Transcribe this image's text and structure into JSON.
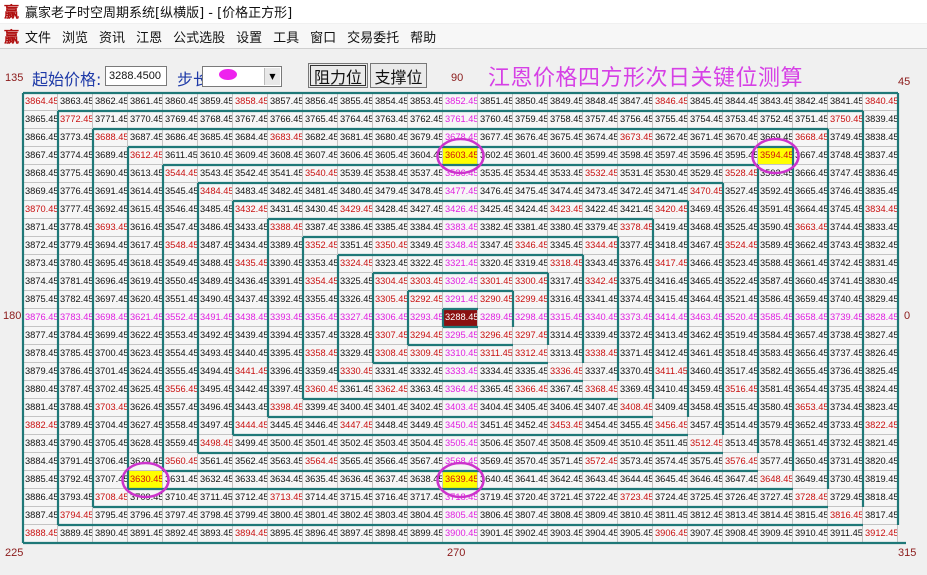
{
  "window": {
    "logo": "赢",
    "title": "赢家老子时空周期系统[纵横版] - [价格正方形]"
  },
  "menu": [
    "文件",
    "浏览",
    "资讯",
    "江恩",
    "公式选股",
    "设置",
    "工具",
    "窗口",
    "交易委托",
    "帮助"
  ],
  "toolbar": {
    "start_label": "起始价格:",
    "start_value": "3288.4500",
    "step_label": "步长:",
    "resistance_button": "阻力位",
    "support_button": "支撑位"
  },
  "heading": "江恩价格四方形次日关键位测算",
  "angles": {
    "top_left": "135",
    "top": "90",
    "top_right": "45",
    "left": "180",
    "right": "0",
    "bottom_left": "225",
    "bottom": "270",
    "bottom_right": "315"
  },
  "colors": {
    "quarter_text": "#c81010",
    "cross_text": "#e020e0",
    "highlight_bg": "#ffff00",
    "center_bg": "#8a1010",
    "wall": "#1f7878",
    "circle": "#cc33cc"
  },
  "grid": {
    "center_value": 3288.45,
    "highlights": [
      3603.45,
      3594.45,
      3630.45,
      3639.45
    ],
    "rows": [
      [
        3864.45,
        3863.45,
        3862.45,
        3861.45,
        3860.45,
        3859.45,
        3858.45,
        3857.45,
        3856.45,
        3855.45,
        3854.45,
        3853.45,
        3852.45,
        3851.45,
        3850.45,
        3849.45,
        3848.45,
        3847.45,
        3846.45,
        3845.45,
        3844.45,
        3843.45,
        3842.45,
        3841.45,
        3840.45
      ],
      [
        3865.45,
        3772.45,
        3771.45,
        3770.45,
        3769.45,
        3768.45,
        3767.45,
        3766.45,
        3765.45,
        3764.45,
        3763.45,
        3762.45,
        3761.45,
        3760.45,
        3759.45,
        3758.45,
        3757.45,
        3756.45,
        3755.45,
        3754.45,
        3753.45,
        3752.45,
        3751.45,
        3750.45,
        3839.45
      ],
      [
        3866.45,
        3773.45,
        3688.45,
        3687.45,
        3686.45,
        3685.45,
        3684.45,
        3683.45,
        3682.45,
        3681.45,
        3680.45,
        3679.45,
        3678.45,
        3677.45,
        3676.45,
        3675.45,
        3674.45,
        3673.45,
        3672.45,
        3671.45,
        3670.45,
        3669.45,
        3668.45,
        3749.45,
        3838.45
      ],
      [
        3867.45,
        3774.45,
        3689.45,
        3612.45,
        3611.45,
        3610.45,
        3609.45,
        3608.45,
        3607.45,
        3606.45,
        3605.45,
        3604.45,
        3603.45,
        3602.45,
        3601.45,
        3600.45,
        3599.45,
        3598.45,
        3597.45,
        3596.45,
        3595.45,
        3594.45,
        3667.45,
        3748.45,
        3837.45
      ],
      [
        3868.45,
        3775.45,
        3690.45,
        3613.45,
        3544.45,
        3543.45,
        3542.45,
        3541.45,
        3540.45,
        3539.45,
        3538.45,
        3537.45,
        3536.45,
        3535.45,
        3534.45,
        3533.45,
        3532.45,
        3531.45,
        3530.45,
        3529.45,
        3528.45,
        3593.45,
        3666.45,
        3747.45,
        3836.45
      ],
      [
        3869.45,
        3776.45,
        3691.45,
        3614.45,
        3545.45,
        3484.45,
        3483.45,
        3482.45,
        3481.45,
        3480.45,
        3479.45,
        3478.45,
        3477.45,
        3476.45,
        3475.45,
        3474.45,
        3473.45,
        3472.45,
        3471.45,
        3470.45,
        3527.45,
        3592.45,
        3665.45,
        3746.45,
        3835.45
      ],
      [
        3870.45,
        3777.45,
        3692.45,
        3615.45,
        3546.45,
        3485.45,
        3432.45,
        3431.45,
        3430.45,
        3429.45,
        3428.45,
        3427.45,
        3426.45,
        3425.45,
        3424.45,
        3423.45,
        3422.45,
        3421.45,
        3420.45,
        3469.45,
        3526.45,
        3591.45,
        3664.45,
        3745.45,
        3834.45
      ],
      [
        3871.45,
        3778.45,
        3693.45,
        3616.45,
        3547.45,
        3486.45,
        3433.45,
        3388.45,
        3387.45,
        3386.45,
        3385.45,
        3384.45,
        3383.45,
        3382.45,
        3381.45,
        3380.45,
        3379.45,
        3378.45,
        3419.45,
        3468.45,
        3525.45,
        3590.45,
        3663.45,
        3744.45,
        3833.45
      ],
      [
        3872.45,
        3779.45,
        3694.45,
        3617.45,
        3548.45,
        3487.45,
        3434.45,
        3389.45,
        3352.45,
        3351.45,
        3350.45,
        3349.45,
        3348.45,
        3347.45,
        3346.45,
        3345.45,
        3344.45,
        3377.45,
        3418.45,
        3467.45,
        3524.45,
        3589.45,
        3662.45,
        3743.45,
        3832.45
      ],
      [
        3873.45,
        3780.45,
        3695.45,
        3618.45,
        3549.45,
        3488.45,
        3435.45,
        3390.45,
        3353.45,
        3324.45,
        3323.45,
        3322.45,
        3321.45,
        3320.45,
        3319.45,
        3318.45,
        3343.45,
        3376.45,
        3417.45,
        3466.45,
        3523.45,
        3588.45,
        3661.45,
        3742.45,
        3831.45
      ],
      [
        3874.45,
        3781.45,
        3696.45,
        3619.45,
        3550.45,
        3489.45,
        3436.45,
        3391.45,
        3354.45,
        3325.45,
        3304.45,
        3303.45,
        3302.45,
        3301.45,
        3300.45,
        3317.45,
        3342.45,
        3375.45,
        3416.45,
        3465.45,
        3522.45,
        3587.45,
        3660.45,
        3741.45,
        3830.45
      ],
      [
        3875.45,
        3782.45,
        3697.45,
        3620.45,
        3551.45,
        3490.45,
        3437.45,
        3392.45,
        3355.45,
        3326.45,
        3305.45,
        3292.45,
        3291.45,
        3290.45,
        3299.45,
        3316.45,
        3341.45,
        3374.45,
        3415.45,
        3464.45,
        3521.45,
        3586.45,
        3659.45,
        3740.45,
        3829.45
      ],
      [
        3876.45,
        3783.45,
        3698.45,
        3621.45,
        3552.45,
        3491.45,
        3438.45,
        3393.45,
        3356.45,
        3327.45,
        3306.45,
        3293.45,
        3288.45,
        3289.45,
        3298.45,
        3315.45,
        3340.45,
        3373.45,
        3414.45,
        3463.45,
        3520.45,
        3585.45,
        3658.45,
        3739.45,
        3828.45
      ],
      [
        3877.45,
        3784.45,
        3699.45,
        3622.45,
        3553.45,
        3492.45,
        3439.45,
        3394.45,
        3357.45,
        3328.45,
        3307.45,
        3294.45,
        3295.45,
        3296.45,
        3297.45,
        3314.45,
        3339.45,
        3372.45,
        3413.45,
        3462.45,
        3519.45,
        3584.45,
        3657.45,
        3738.45,
        3827.45
      ],
      [
        3878.45,
        3785.45,
        3700.45,
        3623.45,
        3554.45,
        3493.45,
        3440.45,
        3395.45,
        3358.45,
        3329.45,
        3308.45,
        3309.45,
        3310.45,
        3311.45,
        3312.45,
        3313.45,
        3338.45,
        3371.45,
        3412.45,
        3461.45,
        3518.45,
        3583.45,
        3656.45,
        3737.45,
        3826.45
      ],
      [
        3879.45,
        3786.45,
        3701.45,
        3624.45,
        3555.45,
        3494.45,
        3441.45,
        3396.45,
        3359.45,
        3330.45,
        3331.45,
        3332.45,
        3333.45,
        3334.45,
        3335.45,
        3336.45,
        3337.45,
        3370.45,
        3411.45,
        3460.45,
        3517.45,
        3582.45,
        3655.45,
        3736.45,
        3825.45
      ],
      [
        3880.45,
        3787.45,
        3702.45,
        3625.45,
        3556.45,
        3495.45,
        3442.45,
        3397.45,
        3360.45,
        3361.45,
        3362.45,
        3363.45,
        3364.45,
        3365.45,
        3366.45,
        3367.45,
        3368.45,
        3369.45,
        3410.45,
        3459.45,
        3516.45,
        3581.45,
        3654.45,
        3735.45,
        3824.45
      ],
      [
        3881.45,
        3788.45,
        3703.45,
        3626.45,
        3557.45,
        3496.45,
        3443.45,
        3398.45,
        3399.45,
        3400.45,
        3401.45,
        3402.45,
        3403.45,
        3404.45,
        3405.45,
        3406.45,
        3407.45,
        3408.45,
        3409.45,
        3458.45,
        3515.45,
        3580.45,
        3653.45,
        3734.45,
        3823.45
      ],
      [
        3882.45,
        3789.45,
        3704.45,
        3627.45,
        3558.45,
        3497.45,
        3444.45,
        3445.45,
        3446.45,
        3447.45,
        3448.45,
        3449.45,
        3450.45,
        3451.45,
        3452.45,
        3453.45,
        3454.45,
        3455.45,
        3456.45,
        3457.45,
        3514.45,
        3579.45,
        3652.45,
        3733.45,
        3822.45
      ],
      [
        3883.45,
        3790.45,
        3705.45,
        3628.45,
        3559.45,
        3498.45,
        3499.45,
        3500.45,
        3501.45,
        3502.45,
        3503.45,
        3504.45,
        3505.45,
        3506.45,
        3507.45,
        3508.45,
        3509.45,
        3510.45,
        3511.45,
        3512.45,
        3513.45,
        3578.45,
        3651.45,
        3732.45,
        3821.45
      ],
      [
        3884.45,
        3791.45,
        3706.45,
        3629.45,
        3560.45,
        3561.45,
        3562.45,
        3563.45,
        3564.45,
        3565.45,
        3566.45,
        3567.45,
        3568.45,
        3569.45,
        3570.45,
        3571.45,
        3572.45,
        3573.45,
        3574.45,
        3575.45,
        3576.45,
        3577.45,
        3650.45,
        3731.45,
        3820.45
      ],
      [
        3885.45,
        3792.45,
        3707.45,
        3630.45,
        3631.45,
        3632.45,
        3633.45,
        3634.45,
        3635.45,
        3636.45,
        3637.45,
        3638.45,
        3639.45,
        3640.45,
        3641.45,
        3642.45,
        3643.45,
        3644.45,
        3645.45,
        3646.45,
        3647.45,
        3648.45,
        3649.45,
        3730.45,
        3819.45
      ],
      [
        3886.45,
        3793.45,
        3708.45,
        3709.45,
        3710.45,
        3711.45,
        3712.45,
        3713.45,
        3714.45,
        3715.45,
        3716.45,
        3717.45,
        3718.45,
        3719.45,
        3720.45,
        3721.45,
        3722.45,
        3723.45,
        3724.45,
        3725.45,
        3726.45,
        3727.45,
        3728.45,
        3729.45,
        3818.45
      ],
      [
        3887.45,
        3794.45,
        3795.45,
        3796.45,
        3797.45,
        3798.45,
        3799.45,
        3800.45,
        3801.45,
        3802.45,
        3803.45,
        3804.45,
        3805.45,
        3806.45,
        3807.45,
        3808.45,
        3809.45,
        3810.45,
        3811.45,
        3812.45,
        3813.45,
        3814.45,
        3815.45,
        3816.45,
        3817.45
      ],
      [
        3888.45,
        3889.45,
        3890.45,
        3891.45,
        3892.45,
        3893.45,
        3894.45,
        3895.45,
        3896.45,
        3897.45,
        3898.45,
        3899.45,
        3900.45,
        3901.45,
        3902.45,
        3903.45,
        3904.45,
        3905.45,
        3906.45,
        3907.45,
        3908.45,
        3909.45,
        3910.45,
        3911.45,
        3912.45
      ]
    ]
  }
}
